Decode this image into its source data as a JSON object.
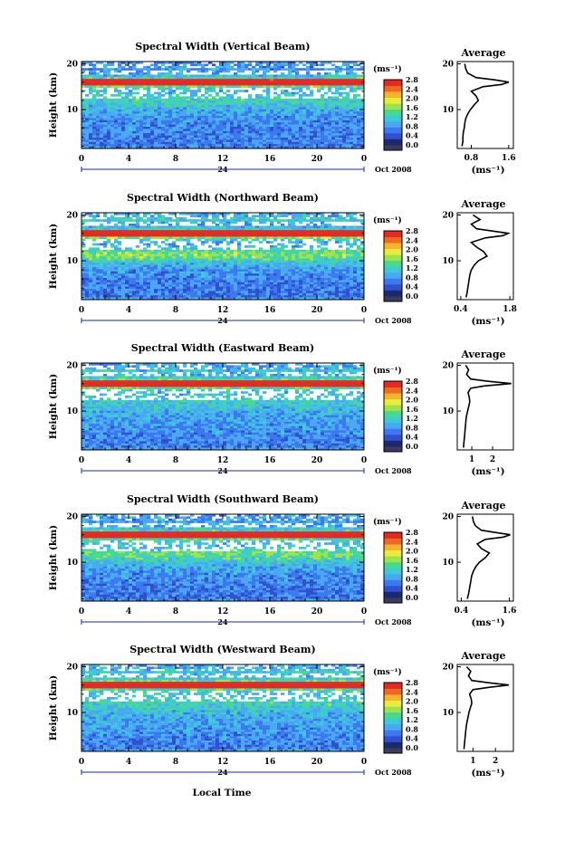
{
  "figure": {
    "xlabel": "Local Time"
  },
  "colorbar": {
    "unit": "(ms⁻¹)",
    "ticks": [
      "0.0",
      "0.4",
      "0.8",
      "1.2",
      "1.6",
      "2.0",
      "2.4",
      "2.8"
    ],
    "colors": [
      "#1a2a6c",
      "#3050d0",
      "#3c78f0",
      "#4aa8f2",
      "#3ccbd6",
      "#48d98e",
      "#9ee34c",
      "#e8ec3a",
      "#f6b42c",
      "#ee6a24",
      "#e42a22"
    ]
  },
  "chart_data": [
    {
      "type": "heatmap",
      "title": "Spectral Width (Vertical Beam)",
      "ylabel": "Height (km)",
      "yticks": [
        "10",
        "20"
      ],
      "ylim": [
        1.5,
        20.5
      ],
      "xticks": [
        "0",
        "4",
        "8",
        "12",
        "16",
        "20",
        "0"
      ],
      "xlim": [
        0,
        24
      ],
      "date_label": "24",
      "month_label": "Oct 2008",
      "colorbar": {
        "unit": "(ms⁻¹)",
        "range": [
          0.0,
          2.8
        ]
      },
      "cells": [
        {
          "height": 18.5,
          "value": 0.8
        },
        {
          "height": 16.0,
          "value": 2.6
        },
        {
          "height": 12.0,
          "value": 1.6
        },
        {
          "height": 8.0,
          "value": 0.8
        },
        {
          "height": 4.0,
          "value": 0.5
        }
      ],
      "average_profile": {
        "title": "Average",
        "xlabel": "(ms⁻¹)",
        "xticks": [
          "0.8",
          "1.6"
        ],
        "xlim": [
          0.5,
          1.7
        ],
        "yticks": [
          "10",
          "20"
        ],
        "ylim": [
          1.5,
          20.5
        ],
        "height": [
          2,
          3,
          4,
          5,
          6,
          7,
          8,
          9,
          10,
          11,
          12,
          13,
          14,
          15,
          15.5,
          16,
          16.5,
          17,
          18,
          19,
          20
        ],
        "width": [
          0.6,
          0.62,
          0.62,
          0.63,
          0.65,
          0.66,
          0.68,
          0.72,
          0.78,
          0.86,
          0.95,
          0.9,
          0.8,
          1.05,
          1.45,
          1.6,
          1.3,
          0.9,
          0.72,
          0.68,
          0.66
        ]
      }
    },
    {
      "type": "heatmap",
      "title": "Spectral Width (Northward Beam)",
      "ylabel": "Height (km)",
      "yticks": [
        "10",
        "20"
      ],
      "ylim": [
        1.5,
        20.5
      ],
      "xticks": [
        "0",
        "4",
        "8",
        "12",
        "16",
        "20",
        "0"
      ],
      "xlim": [
        0,
        24
      ],
      "date_label": "24",
      "month_label": "Oct 2008",
      "colorbar": {
        "unit": "(ms⁻¹)",
        "range": [
          0.0,
          2.8
        ]
      },
      "cells": [
        {
          "height": 18.5,
          "value": 0.9
        },
        {
          "height": 16.0,
          "value": 2.4
        },
        {
          "height": 11.0,
          "value": 2.2
        },
        {
          "height": 8.0,
          "value": 0.9
        },
        {
          "height": 4.0,
          "value": 0.6
        }
      ],
      "average_profile": {
        "title": "Average",
        "xlabel": "(ms⁻¹)",
        "xticks": [
          "0.4",
          "1.8"
        ],
        "xlim": [
          0.3,
          1.9
        ],
        "yticks": [
          "10",
          "20"
        ],
        "ylim": [
          1.5,
          20.5
        ],
        "height": [
          2,
          3,
          4,
          5,
          6,
          7,
          8,
          9,
          10,
          11,
          12,
          13,
          14,
          15,
          15.5,
          16,
          16.5,
          17,
          18,
          19,
          20
        ],
        "width": [
          0.55,
          0.58,
          0.6,
          0.62,
          0.64,
          0.66,
          0.7,
          0.78,
          0.9,
          1.15,
          1.05,
          0.85,
          0.7,
          1.1,
          1.6,
          1.75,
          1.3,
          0.85,
          0.7,
          0.95,
          0.75
        ]
      }
    },
    {
      "type": "heatmap",
      "title": "Spectral Width (Eastward Beam)",
      "ylabel": "Height (km)",
      "yticks": [
        "10",
        "20"
      ],
      "ylim": [
        1.5,
        20.5
      ],
      "xticks": [
        "0",
        "4",
        "8",
        "12",
        "16",
        "20",
        "0"
      ],
      "xlim": [
        0,
        24
      ],
      "date_label": "24",
      "month_label": "Oct 2008",
      "colorbar": {
        "unit": "(ms⁻¹)",
        "range": [
          0.0,
          2.8
        ]
      },
      "cells": [
        {
          "height": 18.5,
          "value": 0.9
        },
        {
          "height": 16.5,
          "value": 2.8
        },
        {
          "height": 12.0,
          "value": 1.4
        },
        {
          "height": 8.0,
          "value": 0.8
        },
        {
          "height": 4.0,
          "value": 0.5
        }
      ],
      "average_profile": {
        "title": "Average",
        "xlabel": "(ms⁻¹)",
        "xticks": [
          "1",
          "2"
        ],
        "xlim": [
          0.3,
          3.0
        ],
        "yticks": [
          "10",
          "20"
        ],
        "ylim": [
          1.5,
          20.5
        ],
        "height": [
          2,
          3,
          4,
          5,
          6,
          7,
          8,
          9,
          10,
          11,
          12,
          13,
          14,
          15,
          15.5,
          16,
          16.5,
          17,
          18,
          19,
          20
        ],
        "width": [
          0.6,
          0.62,
          0.64,
          0.66,
          0.68,
          0.7,
          0.72,
          0.75,
          0.8,
          0.85,
          0.9,
          0.88,
          0.82,
          0.95,
          1.6,
          2.9,
          1.8,
          0.95,
          0.75,
          0.85,
          0.7
        ]
      }
    },
    {
      "type": "heatmap",
      "title": "Spectral Width (Southward Beam)",
      "ylabel": "Height (km)",
      "yticks": [
        "10",
        "20"
      ],
      "ylim": [
        1.5,
        20.5
      ],
      "xticks": [
        "0",
        "4",
        "8",
        "12",
        "16",
        "20",
        "0"
      ],
      "xlim": [
        0,
        24
      ],
      "date_label": "24",
      "month_label": "Oct 2008",
      "colorbar": {
        "unit": "(ms⁻¹)",
        "range": [
          0.0,
          2.8
        ]
      },
      "cells": [
        {
          "height": 18.5,
          "value": 0.9
        },
        {
          "height": 16.0,
          "value": 2.5
        },
        {
          "height": 11.0,
          "value": 2.0
        },
        {
          "height": 8.0,
          "value": 0.8
        },
        {
          "height": 4.0,
          "value": 0.5
        }
      ],
      "average_profile": {
        "title": "Average",
        "xlabel": "(ms⁻¹)",
        "xticks": [
          "0.4",
          "1.6"
        ],
        "xlim": [
          0.3,
          1.7
        ],
        "yticks": [
          "10",
          "20"
        ],
        "ylim": [
          1.5,
          20.5
        ],
        "height": [
          2,
          3,
          4,
          5,
          6,
          7,
          8,
          9,
          10,
          11,
          12,
          13,
          14,
          15,
          15.5,
          16,
          16.5,
          17,
          18,
          19,
          20
        ],
        "width": [
          0.55,
          0.58,
          0.6,
          0.62,
          0.64,
          0.66,
          0.7,
          0.76,
          0.85,
          1.0,
          1.1,
          0.9,
          0.8,
          1.0,
          1.45,
          1.62,
          1.25,
          0.9,
          0.75,
          0.7,
          0.68
        ]
      }
    },
    {
      "type": "heatmap",
      "title": "Spectral Width (Westward Beam)",
      "ylabel": "Height (km)",
      "yticks": [
        "10",
        "20"
      ],
      "ylim": [
        1.5,
        20.5
      ],
      "xticks": [
        "0",
        "4",
        "8",
        "12",
        "16",
        "20",
        "0"
      ],
      "xlim": [
        0,
        24
      ],
      "date_label": "24",
      "month_label": "Oct 2008",
      "colorbar": {
        "unit": "(ms⁻¹)",
        "range": [
          0.0,
          2.8
        ]
      },
      "cells": [
        {
          "height": 18.5,
          "value": 0.9
        },
        {
          "height": 16.5,
          "value": 2.8
        },
        {
          "height": 12.0,
          "value": 1.3
        },
        {
          "height": 8.0,
          "value": 0.8
        },
        {
          "height": 4.0,
          "value": 0.5
        }
      ],
      "average_profile": {
        "title": "Average",
        "xlabel": "(ms⁻¹)",
        "xticks": [
          "1",
          "2"
        ],
        "xlim": [
          0.3,
          2.8
        ],
        "yticks": [
          "10",
          "20"
        ],
        "ylim": [
          1.5,
          20.5
        ],
        "height": [
          2,
          3,
          4,
          5,
          6,
          7,
          8,
          9,
          10,
          11,
          12,
          13,
          14,
          15,
          15.5,
          16,
          16.5,
          17,
          18,
          19,
          20
        ],
        "width": [
          0.6,
          0.62,
          0.64,
          0.66,
          0.68,
          0.7,
          0.74,
          0.78,
          0.82,
          0.88,
          0.95,
          0.92,
          0.85,
          1.0,
          1.7,
          2.6,
          1.7,
          0.95,
          0.8,
          0.9,
          0.72
        ]
      }
    }
  ]
}
